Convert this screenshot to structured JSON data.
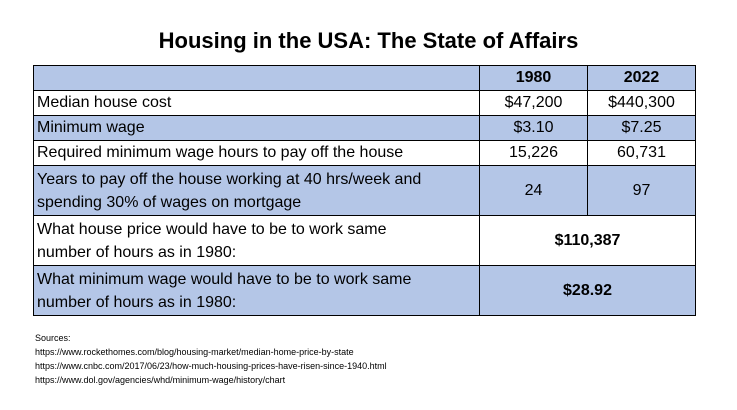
{
  "title": "Housing in the USA: The State of Affairs",
  "table": {
    "columns": [
      "",
      "1980",
      "2022"
    ],
    "rows": [
      {
        "label": "Median house cost",
        "v1980": "$47,200",
        "v2022": "$440,300"
      },
      {
        "label": "Minimum wage",
        "v1980": "$3.10",
        "v2022": "$7.25"
      },
      {
        "label": "Required minimum wage hours to pay off the house",
        "v1980": "15,226",
        "v2022": "60,731"
      },
      {
        "label_line1": "Years to pay off the house working at 40 hrs/week and",
        "label_line2": "spending 30% of wages on mortgage",
        "v1980": "24",
        "v2022": "97"
      },
      {
        "label_line1": "What house price would have to be to work same",
        "label_line2": "number of hours as in 1980:",
        "value": "$110,387"
      },
      {
        "label_line1": "What minimum wage would have to be to work same",
        "label_line2": "number of hours as in 1980:",
        "value": "$28.92"
      }
    ]
  },
  "sources": {
    "heading": "Sources:",
    "links": [
      "https://www.rockethomes.com/blog/housing-market/median-home-price-by-state",
      "https://www.cnbc.com/2017/06/23/how-much-housing-prices-have-risen-since-1940.html",
      "https://www.dol.gov/agencies/whd/minimum-wage/history/chart"
    ]
  },
  "colors": {
    "row_highlight": "#b4c6e7",
    "border": "#000000"
  }
}
